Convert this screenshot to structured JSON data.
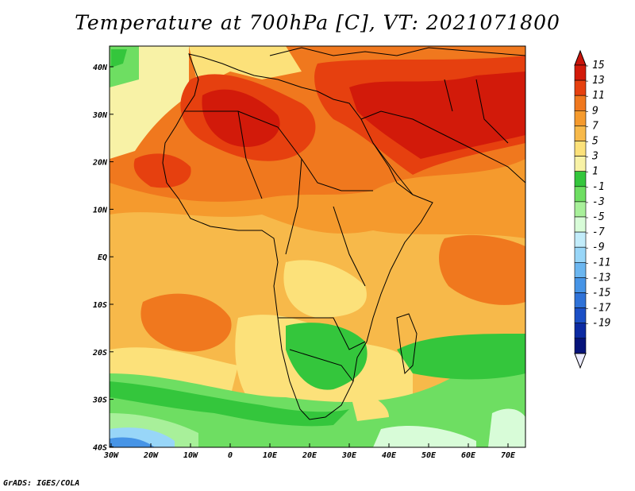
{
  "title": "Temperature at 700hPa [C], VT: 2021071800",
  "credit": "GrADS: IGES/COLA",
  "map": {
    "lon_range": [
      -30,
      75
    ],
    "lat_range": [
      -40,
      45
    ],
    "lon_ticks": [
      "30W",
      "20W",
      "10W",
      "0",
      "10E",
      "20E",
      "30E",
      "40E",
      "50E",
      "60E",
      "70E"
    ],
    "lat_ticks": [
      "40N",
      "30N",
      "20N",
      "10N",
      "EQ",
      "10S",
      "20S",
      "30S",
      "40S"
    ],
    "region": "Africa and Middle East"
  },
  "colorbar": {
    "labels": [
      "15",
      "13",
      "11",
      "9",
      "7",
      "5",
      "3",
      "1",
      "-1",
      "-3",
      "-5",
      "-7",
      "-9",
      "-11",
      "-13",
      "-15",
      "-17",
      "-19"
    ],
    "colors": [
      "#d21a0a",
      "#e6400f",
      "#f0781e",
      "#f59a2d",
      "#f7b94a",
      "#fce17a",
      "#f8f2a6",
      "#34c63c",
      "#6ede62",
      "#a8f09a",
      "#d8fcd8",
      "#c2ecfa",
      "#98d6f8",
      "#6bb6f0",
      "#4694e6",
      "#2f72d8",
      "#1b4fc6",
      "#0c2aa2",
      "#06137a"
    ],
    "top_color": "#c8140a",
    "bottom_color": "#ececff"
  }
}
